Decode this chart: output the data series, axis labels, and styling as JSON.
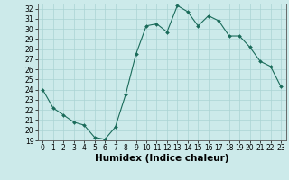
{
  "x": [
    0,
    1,
    2,
    3,
    4,
    5,
    6,
    7,
    8,
    9,
    10,
    11,
    12,
    13,
    14,
    15,
    16,
    17,
    18,
    19,
    20,
    21,
    22,
    23
  ],
  "y": [
    24.0,
    22.2,
    21.5,
    20.8,
    20.5,
    19.3,
    19.1,
    20.3,
    23.5,
    27.5,
    30.3,
    30.5,
    29.7,
    32.3,
    31.7,
    30.3,
    31.3,
    30.8,
    29.3,
    29.3,
    28.2,
    26.8,
    26.3,
    24.3
  ],
  "bg_color": "#cceaea",
  "line_color": "#1a6b5a",
  "marker_color": "#1a6b5a",
  "xlabel": "Humidex (Indice chaleur)",
  "ylim": [
    19,
    32.5
  ],
  "xlim": [
    -0.5,
    23.5
  ],
  "yticks": [
    19,
    20,
    21,
    22,
    23,
    24,
    25,
    26,
    27,
    28,
    29,
    30,
    31,
    32
  ],
  "xticks": [
    0,
    1,
    2,
    3,
    4,
    5,
    6,
    7,
    8,
    9,
    10,
    11,
    12,
    13,
    14,
    15,
    16,
    17,
    18,
    19,
    20,
    21,
    22,
    23
  ],
  "grid_color": "#aad4d4",
  "tick_label_size": 5.5,
  "xlabel_size": 7.5
}
